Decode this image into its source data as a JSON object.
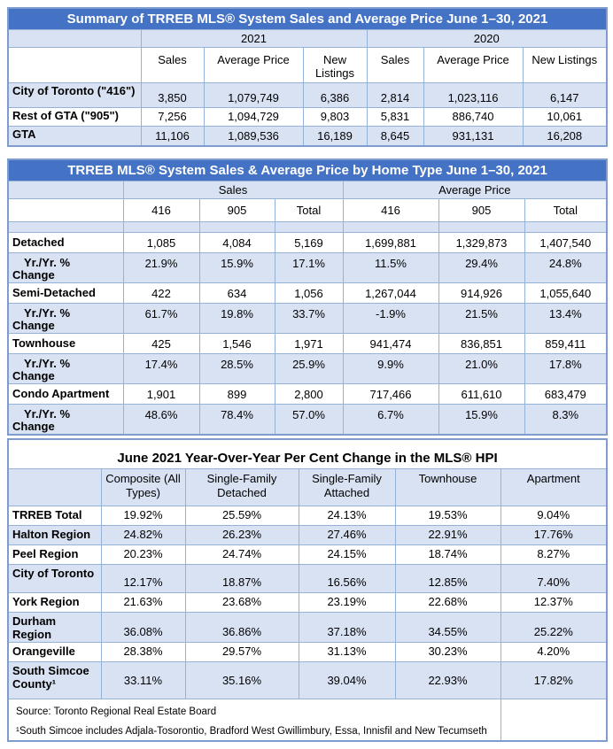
{
  "colors": {
    "title_bar_blue": "#4472C4",
    "title_text": "#FFFFFF",
    "row_fill_light_blue": "#D9E2F3",
    "grid_border_blue": "#95B3D7"
  },
  "table1": {
    "title": "Summary of TRREB MLS® System Sales and Average Price June 1–30, 2021",
    "year_groups": [
      "2021",
      "2020"
    ],
    "sub_headers": [
      "Sales",
      "Average Price",
      "New Listings",
      "Sales",
      "Average Price",
      "New Listings"
    ],
    "rows": [
      {
        "label": "City of Toronto (\"416\")",
        "values": [
          "3,850",
          "1,079,749",
          "6,386",
          "2,814",
          "1,023,116",
          "6,147"
        ]
      },
      {
        "label": "Rest of GTA (\"905\")",
        "values": [
          "7,256",
          "1,094,729",
          "9,803",
          "5,831",
          "886,740",
          "10,061"
        ]
      },
      {
        "label": "GTA",
        "values": [
          "11,106",
          "1,089,536",
          "16,189",
          "8,645",
          "931,131",
          "16,208"
        ]
      }
    ]
  },
  "table2": {
    "title": "TRREB MLS® System Sales & Average Price by Home Type June 1–30, 2021",
    "group_headers": [
      "Sales",
      "Average Price"
    ],
    "sub_headers": [
      "416",
      "905",
      "Total",
      "416",
      "905",
      "Total"
    ],
    "rows": [
      {
        "label": "Detached",
        "values": [
          "1,085",
          "4,084",
          "5,169",
          "1,699,881",
          "1,329,873",
          "1,407,540"
        ]
      },
      {
        "label": "Yr./Yr. %\nChange",
        "values": [
          "21.9%",
          "15.9%",
          "17.1%",
          "11.5%",
          "29.4%",
          "24.8%"
        ]
      },
      {
        "label": "Semi-Detached",
        "values": [
          "422",
          "634",
          "1,056",
          "1,267,044",
          "914,926",
          "1,055,640"
        ]
      },
      {
        "label": "Yr./Yr. %\nChange",
        "values": [
          "61.7%",
          "19.8%",
          "33.7%",
          "-1.9%",
          "21.5%",
          "13.4%"
        ]
      },
      {
        "label": "Townhouse",
        "values": [
          "425",
          "1,546",
          "1,971",
          "941,474",
          "836,851",
          "859,411"
        ]
      },
      {
        "label": "Yr./Yr. %\nChange",
        "values": [
          "17.4%",
          "28.5%",
          "25.9%",
          "9.9%",
          "21.0%",
          "17.8%"
        ]
      },
      {
        "label": "Condo Apartment",
        "values": [
          "1,901",
          "899",
          "2,800",
          "717,466",
          "611,610",
          "683,479"
        ]
      },
      {
        "label": "Yr./Yr. %\nChange",
        "values": [
          "48.6%",
          "78.4%",
          "57.0%",
          "6.7%",
          "15.9%",
          "8.3%"
        ]
      }
    ]
  },
  "table3": {
    "title": "June 2021 Year-Over-Year Per Cent Change in the MLS® HPI",
    "headers": [
      "Composite (All Types)",
      "Single-Family Detached",
      "Single-Family Attached",
      "Townhouse",
      "Apartment"
    ],
    "rows": [
      {
        "label": "TRREB Total",
        "values": [
          "19.92%",
          "25.59%",
          "24.13%",
          "19.53%",
          "9.04%"
        ]
      },
      {
        "label": "Halton Region",
        "values": [
          "24.82%",
          "26.23%",
          "27.46%",
          "22.91%",
          "17.76%"
        ]
      },
      {
        "label": "Peel Region",
        "values": [
          "20.23%",
          "24.74%",
          "24.15%",
          "18.74%",
          "8.27%"
        ]
      },
      {
        "label": "City of Toronto",
        "values": [
          "12.17%",
          "18.87%",
          "16.56%",
          "12.85%",
          "7.40%"
        ]
      },
      {
        "label": "York Region",
        "values": [
          "21.63%",
          "23.68%",
          "23.19%",
          "22.68%",
          "12.37%"
        ]
      },
      {
        "label": "Durham Region",
        "values": [
          "36.08%",
          "36.86%",
          "37.18%",
          "34.55%",
          "25.22%"
        ]
      },
      {
        "label": "Orangeville",
        "values": [
          "28.38%",
          "29.57%",
          "31.13%",
          "30.23%",
          "4.20%"
        ]
      },
      {
        "label": "South Simcoe County¹",
        "values": [
          "33.11%",
          "35.16%",
          "39.04%",
          "22.93%",
          "17.82%"
        ]
      }
    ],
    "footer": {
      "source": "Source: Toronto Regional Real Estate Board",
      "footnote": "¹South Simcoe includes Adjala-Tosorontio, Bradford West Gwillimbury, Essa, Innisfil and New Tecumseth"
    }
  }
}
